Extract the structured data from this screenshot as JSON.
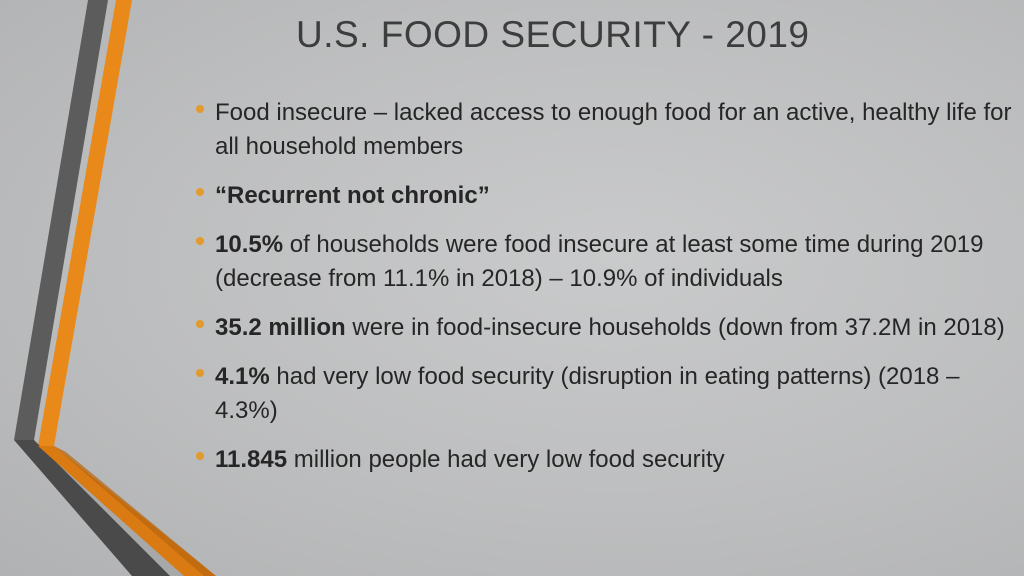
{
  "slide": {
    "title": "U.S. FOOD SECURITY - 2019",
    "accent_color": "#e8891a",
    "stripe_color": "#5c5c5c"
  },
  "bullets": [
    {
      "bold": "",
      "text": "Food insecure – lacked access to enough food for an active, healthy life for all household members"
    },
    {
      "bold": "“Recurrent not chronic”",
      "text": ""
    },
    {
      "bold": "10.5%",
      "text": " of households were food insecure at least some time during 2019 (decrease from 11.1% in 2018) – 10.9% of individuals"
    },
    {
      "bold": "35.2 million",
      "text": " were in food-insecure households (down from 37.2M in 2018)"
    },
    {
      "bold": "4.1%",
      "text": " had very low food security (disruption in eating patterns) (2018 – 4.3%)"
    },
    {
      "bold": "11.845",
      "text": " million people had very low food security"
    }
  ]
}
